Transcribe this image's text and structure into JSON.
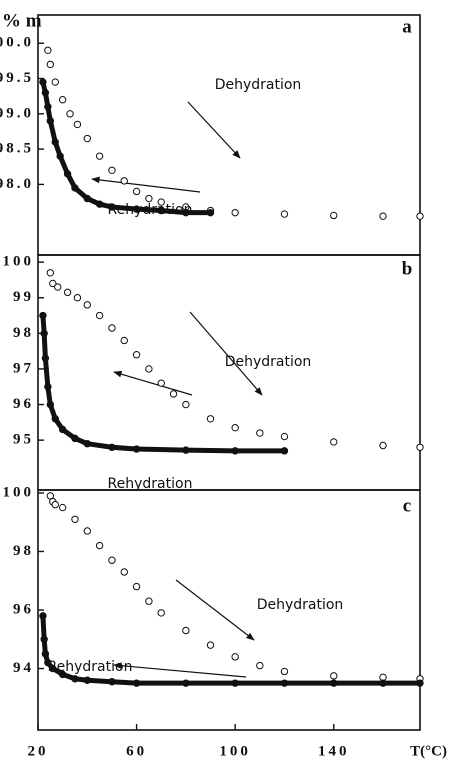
{
  "chart_data": [
    {
      "type": "scatter",
      "title": "a",
      "ylabel": "% m",
      "ylim": [
        97.0,
        100.4
      ],
      "yticks": [
        {
          "value": 100,
          "label": "100.0"
        },
        99.5,
        {
          "value": 99,
          "label": "99.0"
        },
        98.5,
        {
          "value": 98,
          "label": "98.0"
        }
      ],
      "xlim": [
        20,
        175
      ],
      "series": [
        {
          "name": "Dehydration",
          "marker": "open",
          "color": "#111111",
          "x": [
            24,
            25,
            27,
            30,
            33,
            36,
            40,
            45,
            50,
            55,
            60,
            65,
            70,
            80,
            90,
            100,
            120,
            140,
            160,
            175
          ],
          "values": [
            99.9,
            99.7,
            99.45,
            99.2,
            99.0,
            98.85,
            98.65,
            98.4,
            98.2,
            98.05,
            97.9,
            97.8,
            97.75,
            97.68,
            97.63,
            97.6,
            97.58,
            97.56,
            97.55,
            97.55
          ]
        },
        {
          "name": "Rehydration",
          "marker": "filled",
          "color": "#111111",
          "x": [
            22,
            23,
            24,
            25,
            27,
            29,
            32,
            35,
            40,
            45,
            50,
            60,
            70,
            80,
            90
          ],
          "values": [
            99.45,
            99.3,
            99.1,
            98.9,
            98.6,
            98.4,
            98.15,
            97.95,
            97.8,
            97.72,
            97.68,
            97.65,
            97.63,
            97.6,
            97.6
          ]
        }
      ]
    },
    {
      "type": "scatter",
      "title": "b",
      "ylim": [
        93.6,
        100.2
      ],
      "yticks": [
        100,
        99,
        98,
        97,
        96,
        95
      ],
      "xlim": [
        20,
        175
      ],
      "series": [
        {
          "name": "Dehydration",
          "marker": "open",
          "color": "#111111",
          "x": [
            25,
            26,
            28,
            32,
            36,
            40,
            45,
            50,
            55,
            60,
            65,
            70,
            75,
            80,
            90,
            100,
            110,
            120,
            140,
            160,
            175
          ],
          "values": [
            99.7,
            99.4,
            99.3,
            99.15,
            99.0,
            98.8,
            98.5,
            98.15,
            97.8,
            97.4,
            97.0,
            96.6,
            96.3,
            96.0,
            95.6,
            95.35,
            95.2,
            95.1,
            94.95,
            94.85,
            94.8
          ]
        },
        {
          "name": "Rehydration",
          "marker": "filled",
          "color": "#111111",
          "x": [
            22,
            22.5,
            23,
            24,
            25,
            27,
            30,
            35,
            40,
            50,
            60,
            80,
            100,
            120
          ],
          "values": [
            98.5,
            98.0,
            97.3,
            96.5,
            96.0,
            95.6,
            95.3,
            95.05,
            94.9,
            94.8,
            94.75,
            94.72,
            94.7,
            94.7
          ]
        }
      ]
    },
    {
      "type": "scatter",
      "title": "c",
      "xlabel": "T(°C)",
      "ylim": [
        91.9,
        100.1
      ],
      "yticks": [
        100,
        98,
        96,
        94
      ],
      "xlim": [
        20,
        175
      ],
      "xticks": [
        20,
        60,
        100,
        140
      ],
      "series": [
        {
          "name": "Dehydration",
          "marker": "open",
          "color": "#111111",
          "x": [
            25,
            26,
            27,
            30,
            35,
            40,
            45,
            50,
            55,
            60,
            65,
            70,
            80,
            90,
            100,
            110,
            120,
            140,
            160,
            175
          ],
          "values": [
            99.9,
            99.7,
            99.6,
            99.5,
            99.1,
            98.7,
            98.2,
            97.7,
            97.3,
            96.8,
            96.3,
            95.9,
            95.3,
            94.8,
            94.4,
            94.1,
            93.9,
            93.75,
            93.7,
            93.65
          ]
        },
        {
          "name": "Rehydration",
          "marker": "filled",
          "color": "#111111",
          "x": [
            22,
            22.5,
            23,
            24,
            26,
            30,
            35,
            40,
            50,
            60,
            80,
            100,
            120,
            140,
            160,
            175
          ],
          "values": [
            95.8,
            95.0,
            94.5,
            94.2,
            94.0,
            93.8,
            93.65,
            93.6,
            93.55,
            93.5,
            93.5,
            93.5,
            93.5,
            93.5,
            93.5,
            93.5
          ]
        }
      ]
    }
  ]
}
